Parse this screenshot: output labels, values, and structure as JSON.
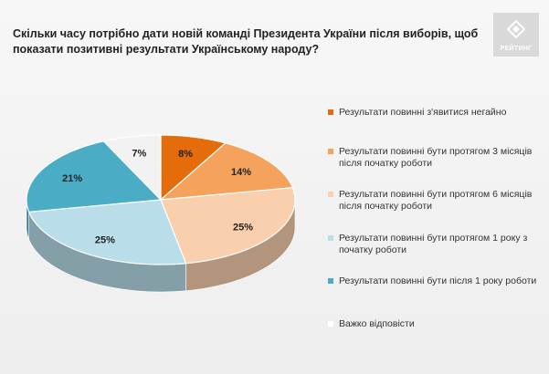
{
  "title": "Скільки часу потрібно дати новій команді Президента України після виборів, щоб показати позитивні результати Українському народу?",
  "logo_text": "РЕЙТИНГ",
  "chart_data": {
    "type": "pie",
    "categories": [
      "Результати повинні з'явитися негайно",
      "Результати повинні бути протягом 3 місяців після початку роботи",
      "Результати повинні бути протягом 6 місяців після початку роботи",
      "Результати повинні бути протягом 1 року з початку роботи",
      "Результати повинні бути після 1 року роботи",
      "Важко відповісти"
    ],
    "values": [
      8,
      14,
      25,
      25,
      21,
      7
    ],
    "value_labels": [
      "8%",
      "14%",
      "25%",
      "25%",
      "21%",
      "7%"
    ],
    "colors": [
      "#e46c0a",
      "#f5a25d",
      "#f9cfad",
      "#b9dde9",
      "#4bacc6",
      "#f2f2f2"
    ],
    "legend_position": "right"
  }
}
